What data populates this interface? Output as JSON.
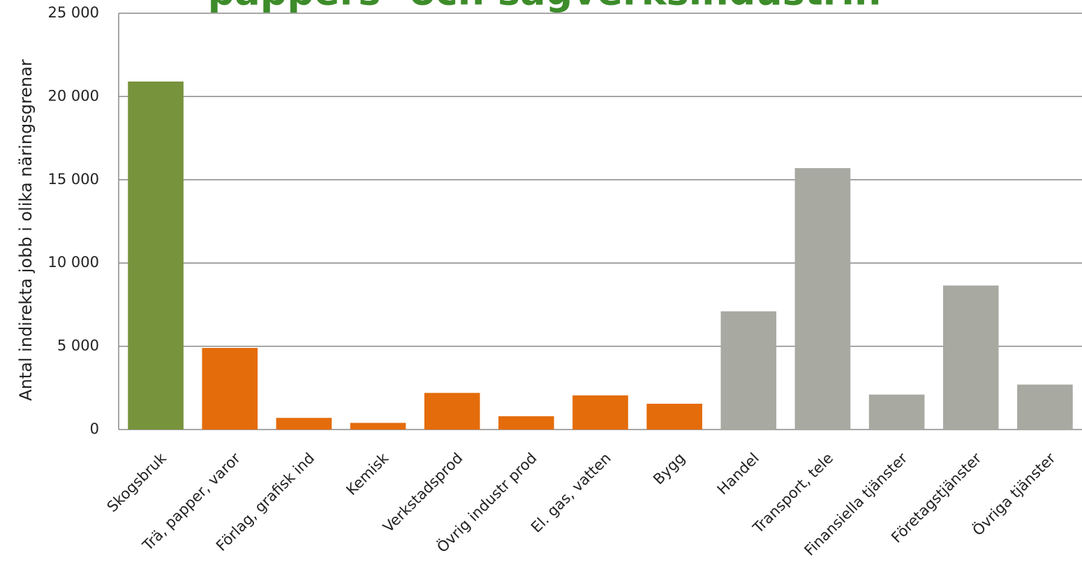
{
  "chart_data": {
    "type": "bar",
    "title": "pappers- och sågverksindustrin",
    "y_label": "Antal indirekta jobb i olika näringsgrenar",
    "categories": [
      "Skogsbruk",
      "Trä, papper, varor",
      "Förlag, grafisk ind",
      "Kemisk",
      "Verkstadsprod",
      "Övrig industr prod",
      "El. gas, vatten",
      "Bygg",
      "Handel",
      "Transport, tele",
      "Finansiella tjänster",
      "Företagstjänster",
      "Övriga tjänster"
    ],
    "values": [
      20900,
      4900,
      700,
      400,
      2200,
      800,
      2050,
      1550,
      7100,
      15700,
      2100,
      8650,
      2700
    ],
    "colors": [
      "#77933c",
      "#e46c0a",
      "#e46c0a",
      "#e46c0a",
      "#e46c0a",
      "#e46c0a",
      "#e46c0a",
      "#e46c0a",
      "#a8a9a1",
      "#a8a9a1",
      "#a8a9a1",
      "#a8a9a1",
      "#a8a9a1"
    ],
    "ylim": [
      0,
      25000
    ],
    "yticks": [
      0,
      {
        "value": 5000,
        "label": "5 000"
      },
      {
        "value": 10000,
        "label": "10 000"
      },
      {
        "value": 15000,
        "label": "15 000"
      },
      {
        "value": 20000,
        "label": "20 000"
      },
      {
        "value": 25000,
        "label": "25 000"
      }
    ],
    "grid": true
  }
}
